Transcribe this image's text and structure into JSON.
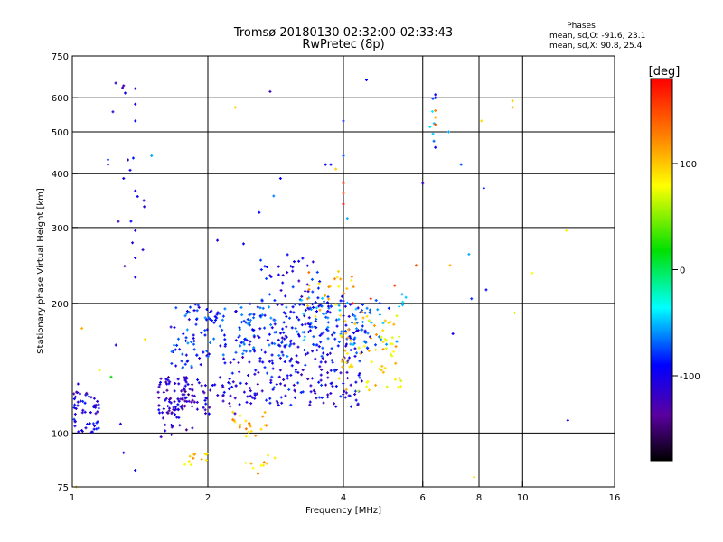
{
  "chart_data": {
    "type": "scatter",
    "title": "Tromsø 20180130 02:32:00-02:33:43",
    "subtitle": "RwPretec (8p)",
    "xlabel": "Frequency [MHz]",
    "ylabel": "Stationary phase Virtual Height [km]",
    "x_scale": "log",
    "y_scale": "log",
    "xlim": [
      1,
      16
    ],
    "ylim": [
      75,
      750
    ],
    "x_ticks": [
      "1",
      "2",
      "4",
      "6",
      "8",
      "10",
      "16"
    ],
    "y_ticks": [
      "75",
      "100",
      "200",
      "300",
      "400",
      "500",
      "600",
      "750"
    ],
    "x_grid_values": [
      2,
      4,
      6,
      8,
      10
    ],
    "y_grid_values": [
      100,
      200,
      300,
      400,
      500,
      600
    ],
    "grid": true,
    "legend_block": {
      "title": "Phases",
      "line1": "mean, sd,O: -91.6, 23.1",
      "line2": "mean, sd,X:  90.8, 25.4"
    },
    "colorbar": {
      "label": "[deg]",
      "range": [
        -180,
        180
      ],
      "ticks": [
        "100",
        "0",
        "-100"
      ],
      "tick_values": [
        100,
        0,
        -100
      ]
    },
    "clusters": [
      {
        "x": [
          1.0,
          1.15
        ],
        "y": [
          100,
          125
        ],
        "phase": -115,
        "n": 55
      },
      {
        "x": [
          1.55,
          1.85
        ],
        "y": [
          98,
          135
        ],
        "phase": -130,
        "n": 60
      },
      {
        "x": [
          1.55,
          2.3
        ],
        "y": [
          110,
          135
        ],
        "phase": -125,
        "n": 80
      },
      {
        "x": [
          1.65,
          2.2
        ],
        "y": [
          140,
          200
        ],
        "phase": -95,
        "n": 90
      },
      {
        "x": [
          2.2,
          4.4
        ],
        "y": [
          115,
          150
        ],
        "phase": -110,
        "n": 160
      },
      {
        "x": [
          2.3,
          4.6
        ],
        "y": [
          150,
          200
        ],
        "phase": -95,
        "n": 220
      },
      {
        "x": [
          2.6,
          3.6
        ],
        "y": [
          200,
          260
        ],
        "phase": -105,
        "n": 40
      },
      {
        "x": [
          3.2,
          5.6
        ],
        "y": [
          160,
          210
        ],
        "phase": -75,
        "n": 70
      },
      {
        "x": [
          3.9,
          5.4
        ],
        "y": [
          125,
          190
        ],
        "phase": 95,
        "n": 70
      },
      {
        "x": [
          3.3,
          4.6
        ],
        "y": [
          185,
          240
        ],
        "phase": 110,
        "n": 25
      },
      {
        "x": [
          2.2,
          2.7
        ],
        "y": [
          98,
          112
        ],
        "phase": 110,
        "n": 22
      },
      {
        "x": [
          1.75,
          2.0
        ],
        "y": [
          84,
          90
        ],
        "phase": 100,
        "n": 12
      },
      {
        "x": [
          2.4,
          2.9
        ],
        "y": [
          80,
          90
        ],
        "phase": 105,
        "n": 10
      },
      {
        "x": [
          1.2,
          1.45
        ],
        "y": [
          200,
          650
        ],
        "phase": -110,
        "n": 16
      },
      {
        "x": [
          6.2,
          6.4
        ],
        "y": [
          460,
          620
        ],
        "phase": -60,
        "n": 6
      }
    ],
    "points": [
      {
        "x": 1.3,
        "y": 640,
        "phase": -140
      },
      {
        "x": 1.38,
        "y": 630,
        "phase": -120
      },
      {
        "x": 1.38,
        "y": 580,
        "phase": -110
      },
      {
        "x": 1.38,
        "y": 530,
        "phase": -100
      },
      {
        "x": 2.3,
        "y": 570,
        "phase": 100
      },
      {
        "x": 2.75,
        "y": 620,
        "phase": -130
      },
      {
        "x": 4.5,
        "y": 660,
        "phase": -100
      },
      {
        "x": 4.0,
        "y": 530,
        "phase": -90
      },
      {
        "x": 4.0,
        "y": 440,
        "phase": -80
      },
      {
        "x": 3.65,
        "y": 420,
        "phase": -100
      },
      {
        "x": 3.85,
        "y": 410,
        "phase": 100
      },
      {
        "x": 3.75,
        "y": 420,
        "phase": -110
      },
      {
        "x": 4.0,
        "y": 360,
        "phase": 150
      },
      {
        "x": 4.0,
        "y": 380,
        "phase": 160
      },
      {
        "x": 4.0,
        "y": 340,
        "phase": 180
      },
      {
        "x": 4.08,
        "y": 315,
        "phase": -60
      },
      {
        "x": 1.5,
        "y": 440,
        "phase": -60
      },
      {
        "x": 1.3,
        "y": 390,
        "phase": -110
      },
      {
        "x": 1.38,
        "y": 365,
        "phase": -110
      },
      {
        "x": 1.35,
        "y": 310,
        "phase": -100
      },
      {
        "x": 1.38,
        "y": 295,
        "phase": -110
      },
      {
        "x": 2.6,
        "y": 325,
        "phase": -100
      },
      {
        "x": 2.8,
        "y": 355,
        "phase": -70
      },
      {
        "x": 2.9,
        "y": 390,
        "phase": -100
      },
      {
        "x": 6.0,
        "y": 380,
        "phase": -130
      },
      {
        "x": 6.4,
        "y": 610,
        "phase": -100
      },
      {
        "x": 6.4,
        "y": 600,
        "phase": -110
      },
      {
        "x": 6.4,
        "y": 560,
        "phase": 130
      },
      {
        "x": 6.4,
        "y": 540,
        "phase": 110
      },
      {
        "x": 6.4,
        "y": 520,
        "phase": 150
      },
      {
        "x": 6.4,
        "y": 460,
        "phase": -100
      },
      {
        "x": 6.85,
        "y": 500,
        "phase": -60
      },
      {
        "x": 7.3,
        "y": 420,
        "phase": -80
      },
      {
        "x": 8.2,
        "y": 370,
        "phase": -90
      },
      {
        "x": 9.5,
        "y": 590,
        "phase": 100
      },
      {
        "x": 9.5,
        "y": 570,
        "phase": 110
      },
      {
        "x": 8.1,
        "y": 530,
        "phase": 95
      },
      {
        "x": 10.5,
        "y": 235,
        "phase": 80
      },
      {
        "x": 12.5,
        "y": 295,
        "phase": 85
      },
      {
        "x": 12.6,
        "y": 107,
        "phase": -120
      },
      {
        "x": 9.6,
        "y": 190,
        "phase": 70
      },
      {
        "x": 8.3,
        "y": 215,
        "phase": -100
      },
      {
        "x": 7.7,
        "y": 205,
        "phase": -90
      },
      {
        "x": 7.6,
        "y": 260,
        "phase": -60
      },
      {
        "x": 6.9,
        "y": 245,
        "phase": 110
      },
      {
        "x": 7.0,
        "y": 170,
        "phase": -110
      },
      {
        "x": 7.8,
        "y": 79,
        "phase": 95
      },
      {
        "x": 5.8,
        "y": 245,
        "phase": 150
      },
      {
        "x": 1.38,
        "y": 255,
        "phase": -110
      },
      {
        "x": 1.38,
        "y": 230,
        "phase": -110
      },
      {
        "x": 1.38,
        "y": 82,
        "phase": -100
      },
      {
        "x": 1.3,
        "y": 90,
        "phase": -110
      },
      {
        "x": 1.05,
        "y": 175,
        "phase": 110
      },
      {
        "x": 1.25,
        "y": 160,
        "phase": -110
      },
      {
        "x": 1.22,
        "y": 135,
        "phase": 0
      },
      {
        "x": 1.15,
        "y": 140,
        "phase": 70
      },
      {
        "x": 1.02,
        "y": 75,
        "phase": 100
      },
      {
        "x": 1.03,
        "y": 130,
        "phase": -120
      },
      {
        "x": 1.28,
        "y": 105,
        "phase": -120
      },
      {
        "x": 2.1,
        "y": 280,
        "phase": -110
      },
      {
        "x": 2.4,
        "y": 275,
        "phase": -100
      },
      {
        "x": 1.45,
        "y": 165,
        "phase": 90
      },
      {
        "x": 4.2,
        "y": 200,
        "phase": 170
      },
      {
        "x": 4.6,
        "y": 205,
        "phase": 170
      },
      {
        "x": 5.2,
        "y": 220,
        "phase": 160
      }
    ]
  }
}
